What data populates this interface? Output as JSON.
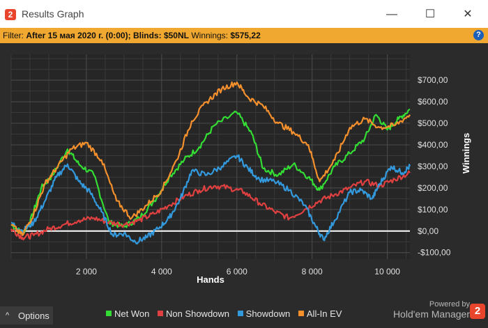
{
  "window": {
    "title": "Results Graph",
    "icon": "2",
    "minimize": "—",
    "maximize": "☐",
    "close": "✕"
  },
  "filter": {
    "prefix": "Filter:",
    "after": "After 15 мая 2020 г. (0:00);",
    "blinds_label": "Blinds:",
    "blinds": "$50NL",
    "winnings_label": "Winnings:",
    "winnings": "$575,22",
    "help": "?"
  },
  "footer": {
    "options_label": "Options",
    "options_icon": "^",
    "powered_by": "Powered by",
    "brand": "Hold'em Manager",
    "brand_logo": "2"
  },
  "chart_data": {
    "type": "line",
    "xlabel": "Hands",
    "ylabel": "Winnings",
    "xlim": [
      0,
      10600
    ],
    "ylim": [
      -130,
      820
    ],
    "x_ticks": [
      2000,
      4000,
      6000,
      8000,
      10000
    ],
    "x_tick_labels": [
      "2 000",
      "4 000",
      "6 000",
      "8 000",
      "10 000"
    ],
    "y_ticks": [
      -100,
      0,
      100,
      200,
      300,
      400,
      500,
      600,
      700
    ],
    "y_tick_labels": [
      "-$100,00",
      "$0,00",
      "$100,00",
      "$200,00",
      "$300,00",
      "$400,00",
      "$500,00",
      "$600,00",
      "$700,00"
    ],
    "grid": true,
    "legend_position": "bottom",
    "series": [
      {
        "name": "Net Won",
        "color": "#33dd33",
        "x": [
          0,
          300,
          500,
          800,
          1100,
          1500,
          1800,
          2200,
          2600,
          3000,
          3400,
          3800,
          4200,
          4600,
          5000,
          5400,
          6000,
          6400,
          6700,
          7100,
          7500,
          7900,
          8200,
          8600,
          9000,
          9400,
          9700,
          10000,
          10300,
          10600
        ],
        "y": [
          30,
          -10,
          40,
          200,
          260,
          380,
          310,
          260,
          40,
          20,
          60,
          140,
          250,
          330,
          390,
          490,
          550,
          450,
          290,
          260,
          310,
          250,
          190,
          300,
          360,
          430,
          540,
          470,
          520,
          565
        ]
      },
      {
        "name": "Non Showdown",
        "color": "#e04040",
        "x": [
          0,
          300,
          600,
          1000,
          1400,
          1800,
          2200,
          2600,
          3000,
          3400,
          3800,
          4200,
          4600,
          5000,
          5400,
          5800,
          6200,
          6600,
          7000,
          7400,
          7800,
          8200,
          8600,
          9000,
          9400,
          9800,
          10200,
          10600
        ],
        "y": [
          10,
          -30,
          -20,
          10,
          30,
          50,
          60,
          40,
          30,
          50,
          80,
          120,
          160,
          190,
          210,
          200,
          180,
          130,
          90,
          60,
          100,
          140,
          170,
          200,
          230,
          210,
          240,
          270
        ]
      },
      {
        "name": "Showdown",
        "color": "#3399dd",
        "x": [
          0,
          300,
          600,
          900,
          1200,
          1500,
          1800,
          2100,
          2400,
          2700,
          3000,
          3300,
          3600,
          3900,
          4200,
          4500,
          4800,
          5200,
          5600,
          6000,
          6300,
          6600,
          7000,
          7400,
          7800,
          8100,
          8300,
          8600,
          9000,
          9300,
          9600,
          9800,
          10100,
          10400,
          10600
        ],
        "y": [
          40,
          0,
          40,
          140,
          250,
          310,
          230,
          180,
          90,
          -20,
          -10,
          -50,
          -30,
          10,
          60,
          150,
          280,
          260,
          300,
          350,
          290,
          240,
          230,
          190,
          120,
          20,
          -40,
          50,
          180,
          190,
          150,
          220,
          300,
          270,
          300
        ]
      },
      {
        "name": "All-In EV",
        "color": "#f5902d",
        "x": [
          0,
          300,
          600,
          900,
          1200,
          1600,
          2000,
          2400,
          2800,
          3200,
          3600,
          4000,
          4400,
          4800,
          5200,
          5600,
          6000,
          6300,
          6700,
          7100,
          7500,
          7900,
          8200,
          8600,
          9000,
          9400,
          9800,
          10200,
          10600
        ],
        "y": [
          30,
          -20,
          80,
          220,
          290,
          380,
          410,
          330,
          140,
          60,
          120,
          190,
          330,
          510,
          600,
          660,
          690,
          620,
          580,
          500,
          460,
          400,
          230,
          330,
          480,
          520,
          480,
          490,
          540
        ]
      }
    ]
  }
}
